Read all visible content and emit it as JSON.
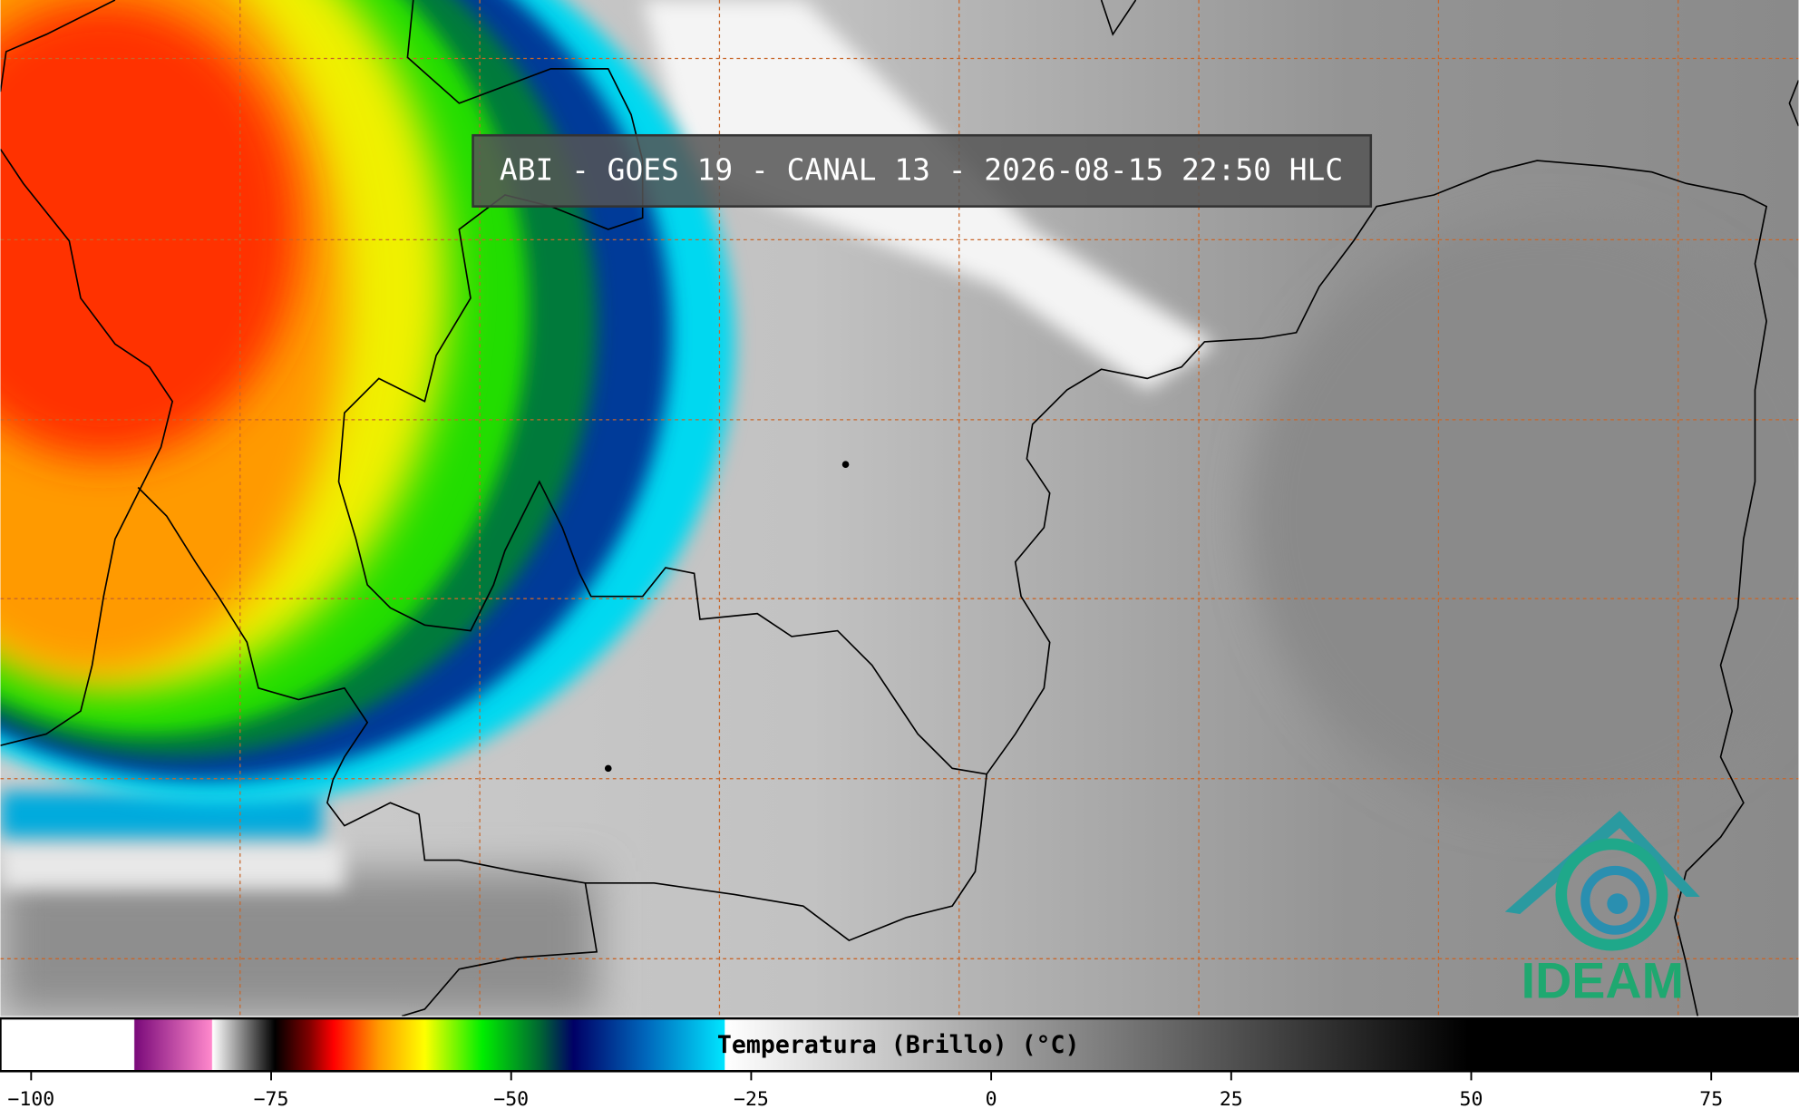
{
  "header": {
    "title": "ABI - GOES 19 - CANAL 13 - 2026-08-15 22:50 HLC"
  },
  "colorbar": {
    "label": "Temperatura (Brillo) (°C)",
    "xlim": [
      -103.2,
      84.1
    ],
    "xticks": [
      {
        "value": -100,
        "label": "−100"
      },
      {
        "value": -75,
        "label": "−75"
      },
      {
        "value": -50,
        "label": "−50"
      },
      {
        "value": -25,
        "label": "−25"
      },
      0,
      25,
      50,
      75
    ],
    "colormap": [
      {
        "value": -103.2,
        "color": "#ffffff"
      },
      {
        "value": -89.3,
        "color": "#ffffff"
      },
      {
        "value": -89.2,
        "color": "#7a0a7a"
      },
      {
        "value": -81.2,
        "color": "#ff88cc"
      },
      {
        "value": -81.1,
        "color": "#ffffff"
      },
      {
        "value": -74.6,
        "color": "#000000"
      },
      {
        "value": -71,
        "color": "#800000"
      },
      {
        "value": -68.5,
        "color": "#ff0000"
      },
      {
        "value": -63.8,
        "color": "#ff9900"
      },
      {
        "value": -59,
        "color": "#ffff00"
      },
      {
        "value": -53,
        "color": "#00ee00"
      },
      {
        "value": -47,
        "color": "#006633"
      },
      {
        "value": -43.5,
        "color": "#000066"
      },
      {
        "value": -36,
        "color": "#0066bb"
      },
      {
        "value": -27.8,
        "color": "#00e5ff"
      },
      {
        "value": -27.7,
        "color": "#ffffff"
      },
      {
        "value": 49.7,
        "color": "#000000"
      },
      {
        "value": 84.1,
        "color": "#000000"
      }
    ]
  },
  "logo": {
    "text": "IDEAM"
  }
}
